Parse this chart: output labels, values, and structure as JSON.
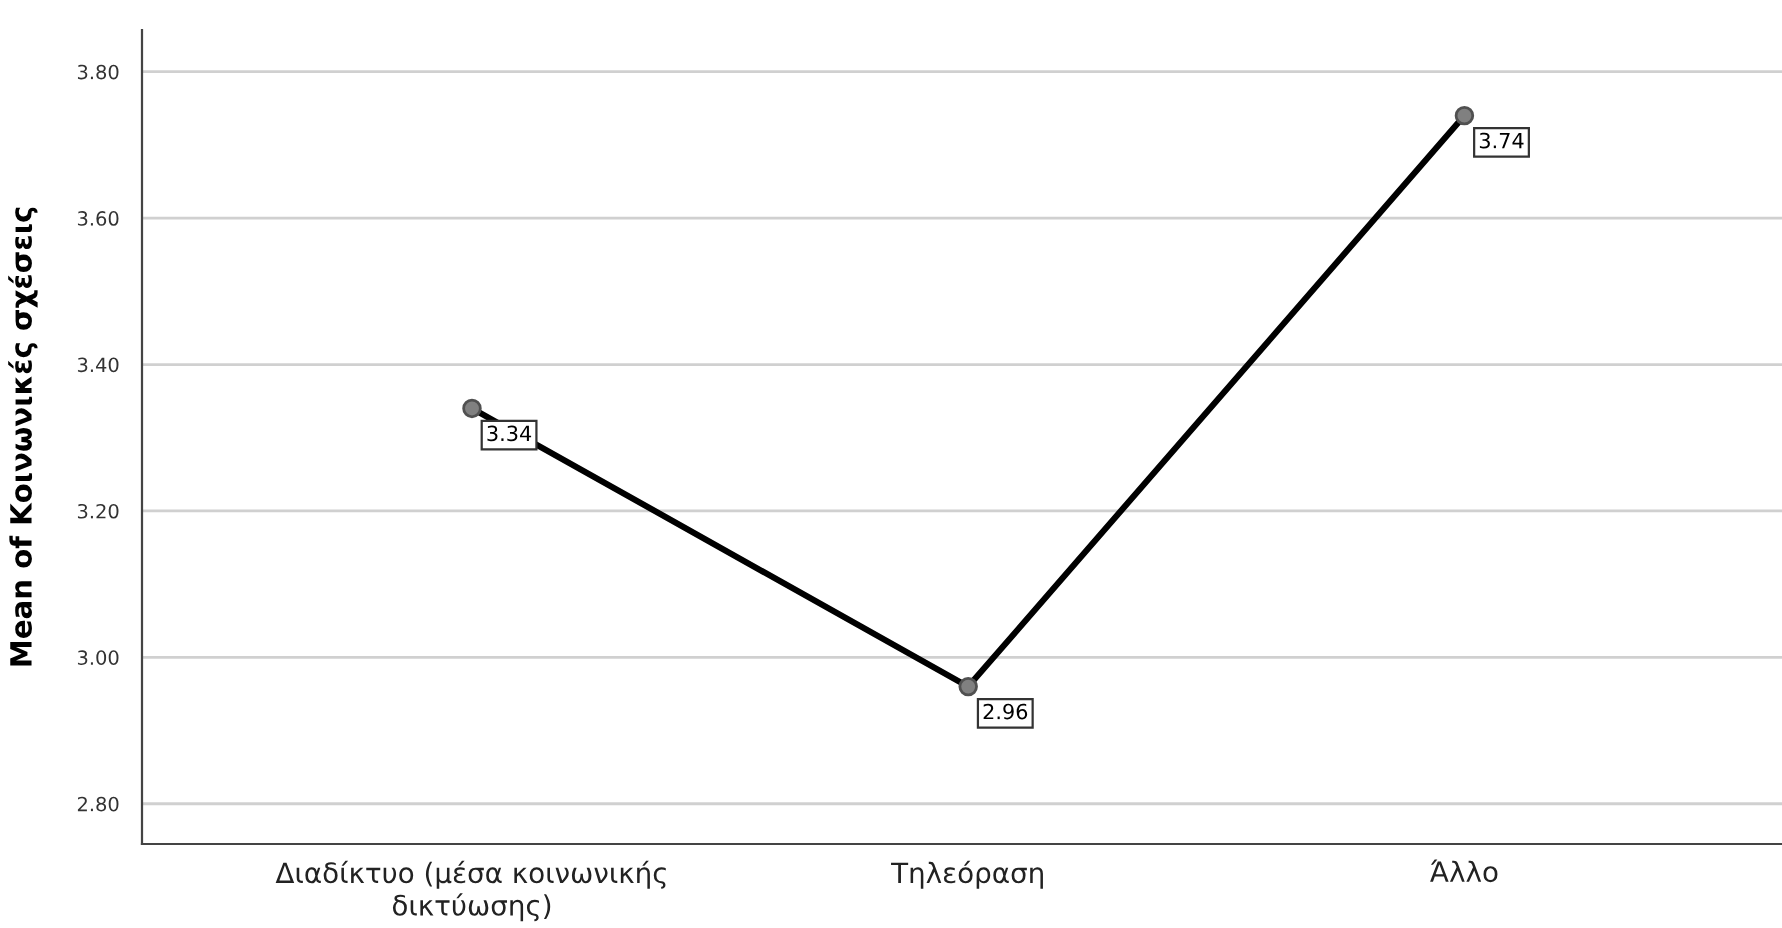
{
  "chart_data": {
    "type": "line",
    "ylabel": "Mean of Κοινωνικές σχέσεις",
    "categories": [
      "Διαδίκτυο (μέσα κοινωνικής\nδικτύωσης)",
      "Τηλεόραση",
      "Άλλο"
    ],
    "series": [
      {
        "color": "#000000",
        "values": [
          3.34,
          2.96,
          3.74
        ]
      }
    ],
    "ylim": [
      2.745,
      3.857
    ],
    "yticks": [
      {
        "value": 2.8,
        "label": "2.80"
      },
      {
        "value": 3.0,
        "label": "3.00"
      },
      {
        "value": 3.2,
        "label": "3.20"
      },
      {
        "value": 3.4,
        "label": "3.40"
      },
      {
        "value": 3.6,
        "label": "3.60"
      },
      {
        "value": 3.8,
        "label": "3.80"
      }
    ],
    "grid": "y",
    "marker": "circle",
    "line_style": "solid",
    "data_labels": true
  }
}
